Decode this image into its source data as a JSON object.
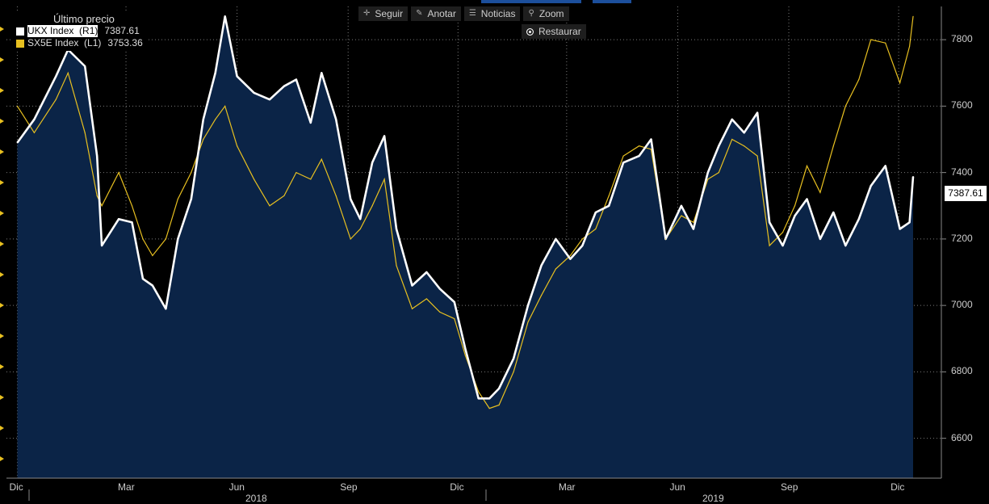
{
  "toolbar": {
    "follow": "Seguir",
    "annotate": "Anotar",
    "news": "Noticias",
    "zoom": "Zoom",
    "restore": "Restaurar"
  },
  "legend": {
    "header": "Último precio",
    "items": [
      {
        "name": "UKX Index  (R1)",
        "value": "7387.61",
        "color": "#ffffff"
      },
      {
        "name": "SX5E Index  (L1)",
        "value": "3753.36",
        "color": "#e8c020"
      }
    ]
  },
  "last_price_label": "7387.61",
  "colors": {
    "background": "#000000",
    "area_fill": "#0b2447",
    "ukx": "#ffffff",
    "sx5e": "#e8c020",
    "grid": "#7a7a7a"
  },
  "chart_data": {
    "type": "line",
    "title": "",
    "y_right": {
      "ticks": [
        6600,
        6800,
        7000,
        7200,
        7400,
        7600,
        7800
      ],
      "range": [
        6480,
        7900
      ]
    },
    "x_ticks": [
      "Dic",
      "Mar",
      "Jun",
      "Sep",
      "Dic",
      "Mar",
      "Jun",
      "Sep",
      "Dic"
    ],
    "years": [
      "2018",
      "2019"
    ],
    "grid": true,
    "legend_position": "top-left",
    "series": [
      {
        "name": "UKX Index (R1)",
        "last": 7387.61,
        "x": [
          "2017-12-01",
          "2017-12-15",
          "2018-01-02",
          "2018-01-12",
          "2018-01-26",
          "2018-02-05",
          "2018-02-09",
          "2018-02-23",
          "2018-03-06",
          "2018-03-15",
          "2018-03-23",
          "2018-04-03",
          "2018-04-13",
          "2018-04-24",
          "2018-05-04",
          "2018-05-14",
          "2018-05-22",
          "2018-06-01",
          "2018-06-15",
          "2018-06-28",
          "2018-07-10",
          "2018-07-20",
          "2018-08-01",
          "2018-08-10",
          "2018-08-22",
          "2018-09-03",
          "2018-09-11",
          "2018-09-21",
          "2018-10-01",
          "2018-10-11",
          "2018-10-24",
          "2018-11-05",
          "2018-11-16",
          "2018-11-28",
          "2018-12-07",
          "2018-12-18",
          "2018-12-27",
          "2019-01-04",
          "2019-01-16",
          "2019-01-28",
          "2019-02-08",
          "2019-02-20",
          "2019-03-04",
          "2019-03-14",
          "2019-03-25",
          "2019-04-05",
          "2019-04-17",
          "2019-04-30",
          "2019-05-10",
          "2019-05-22",
          "2019-06-04",
          "2019-06-14",
          "2019-06-26",
          "2019-07-05",
          "2019-07-16",
          "2019-07-26",
          "2019-08-06",
          "2019-08-16",
          "2019-08-27",
          "2019-09-06",
          "2019-09-16",
          "2019-09-27",
          "2019-10-08",
          "2019-10-18",
          "2019-10-29",
          "2019-11-08",
          "2019-11-20",
          "2019-12-02",
          "2019-12-10",
          "2019-12-13"
        ],
        "y": [
          7490,
          7560,
          7690,
          7770,
          7720,
          7450,
          7180,
          7260,
          7250,
          7080,
          7060,
          6990,
          7200,
          7320,
          7560,
          7700,
          7870,
          7690,
          7640,
          7620,
          7660,
          7680,
          7550,
          7700,
          7560,
          7320,
          7260,
          7430,
          7510,
          7230,
          7060,
          7100,
          7050,
          7010,
          6870,
          6720,
          6720,
          6750,
          6840,
          7000,
          7120,
          7200,
          7140,
          7180,
          7280,
          7300,
          7430,
          7450,
          7500,
          7200,
          7300,
          7230,
          7400,
          7480,
          7560,
          7520,
          7580,
          7250,
          7180,
          7270,
          7320,
          7200,
          7280,
          7180,
          7260,
          7360,
          7420,
          7230,
          7250,
          7387.61
        ]
      },
      {
        "name": "SX5E Index (L1)",
        "last": 3753.36,
        "x": [
          "2017-12-01",
          "2017-12-15",
          "2018-01-02",
          "2018-01-12",
          "2018-01-26",
          "2018-02-05",
          "2018-02-09",
          "2018-02-23",
          "2018-03-06",
          "2018-03-15",
          "2018-03-23",
          "2018-04-03",
          "2018-04-13",
          "2018-04-24",
          "2018-05-04",
          "2018-05-14",
          "2018-05-22",
          "2018-06-01",
          "2018-06-15",
          "2018-06-28",
          "2018-07-10",
          "2018-07-20",
          "2018-08-01",
          "2018-08-10",
          "2018-08-22",
          "2018-09-03",
          "2018-09-11",
          "2018-09-21",
          "2018-10-01",
          "2018-10-11",
          "2018-10-24",
          "2018-11-05",
          "2018-11-16",
          "2018-11-28",
          "2018-12-07",
          "2018-12-18",
          "2018-12-27",
          "2019-01-04",
          "2019-01-16",
          "2019-01-28",
          "2019-02-08",
          "2019-02-20",
          "2019-03-04",
          "2019-03-14",
          "2019-03-25",
          "2019-04-05",
          "2019-04-17",
          "2019-04-30",
          "2019-05-10",
          "2019-05-22",
          "2019-06-04",
          "2019-06-14",
          "2019-06-26",
          "2019-07-05",
          "2019-07-16",
          "2019-07-26",
          "2019-08-06",
          "2019-08-16",
          "2019-08-27",
          "2019-09-06",
          "2019-09-16",
          "2019-09-27",
          "2019-10-08",
          "2019-10-18",
          "2019-10-29",
          "2019-11-08",
          "2019-11-20",
          "2019-12-02",
          "2019-12-10",
          "2019-12-13"
        ],
        "y_plotted_on_right_scale": [
          7600,
          7520,
          7620,
          7700,
          7520,
          7330,
          7300,
          7400,
          7300,
          7200,
          7150,
          7200,
          7320,
          7400,
          7500,
          7560,
          7600,
          7480,
          7380,
          7300,
          7330,
          7400,
          7380,
          7440,
          7330,
          7200,
          7230,
          7300,
          7380,
          7120,
          6990,
          7020,
          6980,
          6960,
          6850,
          6740,
          6690,
          6700,
          6800,
          6950,
          7030,
          7110,
          7150,
          7200,
          7230,
          7330,
          7450,
          7480,
          7470,
          7200,
          7270,
          7250,
          7380,
          7400,
          7500,
          7480,
          7450,
          7180,
          7220,
          7300,
          7420,
          7340,
          7480,
          7600,
          7680,
          7800,
          7790,
          7670,
          7780,
          7870
        ]
      }
    ]
  }
}
